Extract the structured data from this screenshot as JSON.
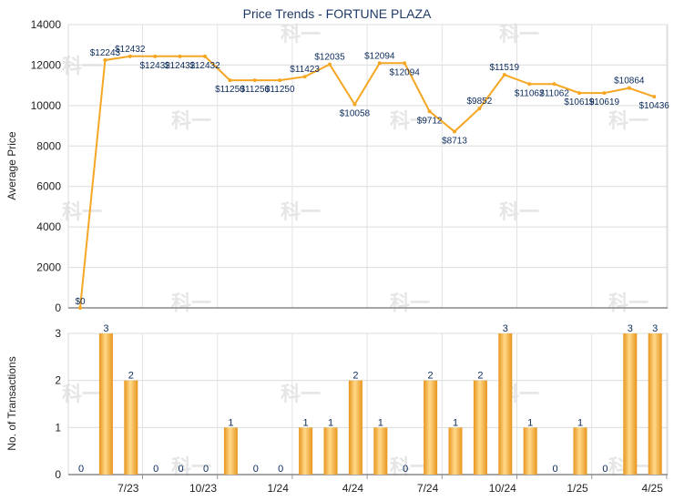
{
  "chart_data": [
    {
      "type": "line",
      "title": "Price Trends - FORTUNE PLAZA",
      "ylabel": "Average Price",
      "ylim": [
        0,
        14000
      ],
      "yticks": [
        0,
        2000,
        4000,
        6000,
        8000,
        10000,
        12000,
        14000
      ],
      "grid": true,
      "color": "#f5a623",
      "series": [
        {
          "values": [
            0,
            12243,
            12432,
            12432,
            12432,
            12432,
            11250,
            11250,
            11250,
            11423,
            12035,
            10058,
            12094,
            12094,
            9712,
            8713,
            9852,
            11519,
            11062,
            11062,
            10619,
            10619,
            10864,
            10436
          ],
          "labels": [
            "$0",
            "$12243",
            "$12432",
            "$12432",
            "$12432",
            "$12432",
            "$11250",
            "$11250",
            "$11250",
            "$11423",
            "$12035",
            "$10058",
            "$12094",
            "$12094",
            "$9712",
            "$8713",
            "$9852",
            "$11519",
            "$11062",
            "$11062",
            "$10619",
            "$10619",
            "$10864",
            "$10436"
          ]
        }
      ]
    },
    {
      "type": "bar",
      "ylabel": "No. of Transactions",
      "ylim": [
        0,
        3
      ],
      "yticks": [
        0,
        1,
        2,
        3
      ],
      "xticks": [
        "7/23",
        "10/23",
        "1/24",
        "4/24",
        "7/24",
        "10/24",
        "1/25",
        "4/25"
      ],
      "grid": true,
      "color": "#f5a623",
      "values": [
        0,
        3,
        2,
        0,
        0,
        0,
        1,
        0,
        0,
        1,
        1,
        2,
        1,
        0,
        2,
        1,
        2,
        3,
        1,
        0,
        1,
        0,
        3,
        3
      ]
    }
  ],
  "watermark": "科一"
}
